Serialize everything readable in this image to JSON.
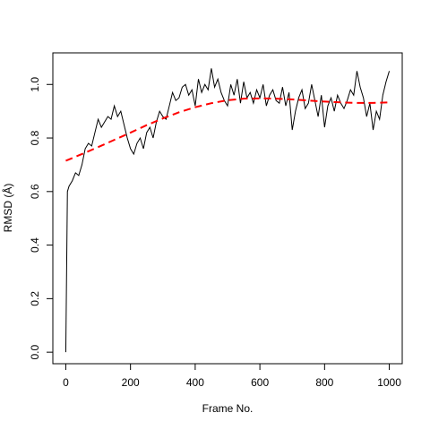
{
  "chart_data": {
    "type": "line",
    "xlabel": "Frame No.",
    "ylabel": "RMSD (Å)",
    "xlim": [
      -40,
      1040
    ],
    "ylim": [
      -0.043,
      1.118
    ],
    "xticks": [
      0,
      200,
      400,
      600,
      800,
      1000
    ],
    "yticks": [
      {
        "value": 0,
        "label": "0.0"
      },
      0.2,
      0.4,
      0.6,
      0.8,
      {
        "value": 1,
        "label": "1.0"
      }
    ],
    "series": [
      {
        "color": "#000000",
        "dashed": false,
        "x": [
          0,
          5,
          10,
          20,
          30,
          40,
          50,
          60,
          70,
          80,
          90,
          100,
          110,
          120,
          130,
          140,
          150,
          160,
          170,
          180,
          190,
          200,
          210,
          220,
          230,
          240,
          250,
          260,
          270,
          280,
          290,
          300,
          310,
          320,
          330,
          340,
          350,
          360,
          370,
          380,
          390,
          400,
          410,
          420,
          430,
          440,
          450,
          460,
          470,
          480,
          490,
          500,
          510,
          520,
          530,
          540,
          550,
          560,
          570,
          580,
          590,
          600,
          610,
          620,
          630,
          640,
          650,
          660,
          670,
          680,
          690,
          700,
          710,
          720,
          730,
          740,
          750,
          760,
          770,
          780,
          790,
          800,
          810,
          820,
          830,
          840,
          850,
          860,
          870,
          880,
          890,
          900,
          910,
          920,
          930,
          940,
          950,
          960,
          970,
          980,
          990,
          1000
        ],
        "values": [
          0.0,
          0.6,
          0.62,
          0.64,
          0.67,
          0.66,
          0.7,
          0.76,
          0.78,
          0.77,
          0.82,
          0.87,
          0.84,
          0.86,
          0.88,
          0.87,
          0.92,
          0.88,
          0.9,
          0.85,
          0.8,
          0.76,
          0.74,
          0.78,
          0.8,
          0.76,
          0.82,
          0.84,
          0.8,
          0.86,
          0.9,
          0.88,
          0.87,
          0.92,
          0.97,
          0.94,
          0.95,
          0.99,
          1.0,
          0.96,
          0.98,
          0.92,
          1.02,
          0.97,
          1.0,
          0.98,
          1.06,
          0.99,
          1.02,
          0.97,
          0.94,
          0.92,
          1.0,
          0.96,
          1.02,
          0.93,
          1.01,
          0.95,
          0.97,
          0.93,
          0.98,
          0.95,
          1.0,
          0.92,
          0.96,
          0.98,
          0.94,
          0.93,
          0.99,
          0.92,
          0.97,
          0.83,
          0.9,
          0.95,
          0.98,
          0.91,
          0.93,
          1.0,
          0.94,
          0.88,
          0.96,
          0.84,
          0.92,
          0.95,
          0.9,
          0.96,
          0.93,
          0.91,
          0.94,
          0.98,
          0.96,
          1.05,
          0.99,
          0.95,
          0.88,
          0.93,
          0.83,
          0.9,
          0.87,
          0.96,
          1.01,
          1.05
        ]
      },
      {
        "color": "#ff0000",
        "dashed": true,
        "x": [
          0,
          50,
          100,
          150,
          200,
          250,
          300,
          350,
          400,
          450,
          500,
          550,
          600,
          650,
          700,
          750,
          800,
          850,
          900,
          950,
          1000
        ],
        "values": [
          0.715,
          0.74,
          0.766,
          0.793,
          0.82,
          0.848,
          0.873,
          0.896,
          0.915,
          0.93,
          0.941,
          0.947,
          0.948,
          0.947,
          0.944,
          0.94,
          0.936,
          0.933,
          0.931,
          0.931,
          0.933
        ]
      }
    ]
  }
}
